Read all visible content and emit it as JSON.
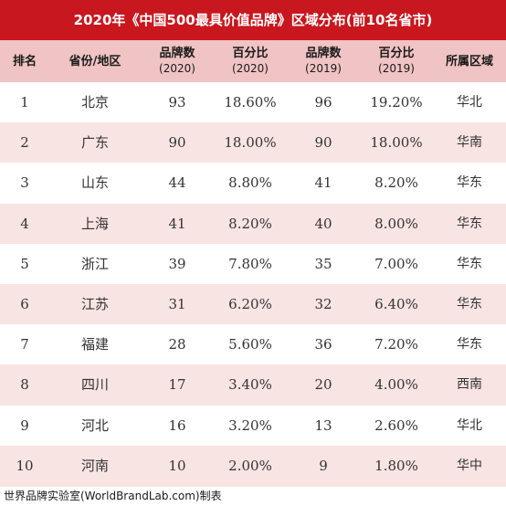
{
  "title": "2020年《中国500最具价值品牌》区域分布(前10名省市)",
  "headers": [
    {
      "line1": "排名",
      "line2": ""
    },
    {
      "line1": "省份/地区",
      "line2": ""
    },
    {
      "line1": "品牌数",
      "line2": "(2020)"
    },
    {
      "line1": "百分比",
      "line2": "(2020)"
    },
    {
      "line1": "品牌数",
      "line2": "(2019)"
    },
    {
      "line1": "百分比",
      "line2": "(2019)"
    },
    {
      "line1": "所属区域",
      "line2": ""
    }
  ],
  "chart_data": {
    "type": "table",
    "rows": [
      {
        "rank": "1",
        "province": "北京",
        "brands_2020": "93",
        "pct_2020": "18.60%",
        "brands_2019": "96",
        "pct_2019": "19.20%",
        "region": "华北"
      },
      {
        "rank": "2",
        "province": "广东",
        "brands_2020": "90",
        "pct_2020": "18.00%",
        "brands_2019": "90",
        "pct_2019": "18.00%",
        "region": "华南"
      },
      {
        "rank": "3",
        "province": "山东",
        "brands_2020": "44",
        "pct_2020": "8.80%",
        "brands_2019": "41",
        "pct_2019": "8.20%",
        "region": "华东"
      },
      {
        "rank": "4",
        "province": "上海",
        "brands_2020": "41",
        "pct_2020": "8.20%",
        "brands_2019": "40",
        "pct_2019": "8.00%",
        "region": "华东"
      },
      {
        "rank": "5",
        "province": "浙江",
        "brands_2020": "39",
        "pct_2020": "7.80%",
        "brands_2019": "35",
        "pct_2019": "7.00%",
        "region": "华东"
      },
      {
        "rank": "6",
        "province": "江苏",
        "brands_2020": "31",
        "pct_2020": "6.20%",
        "brands_2019": "32",
        "pct_2019": "6.40%",
        "region": "华东"
      },
      {
        "rank": "7",
        "province": "福建",
        "brands_2020": "28",
        "pct_2020": "5.60%",
        "brands_2019": "36",
        "pct_2019": "7.20%",
        "region": "华东"
      },
      {
        "rank": "8",
        "province": "四川",
        "brands_2020": "17",
        "pct_2020": "3.40%",
        "brands_2019": "20",
        "pct_2019": "4.00%",
        "region": "西南"
      },
      {
        "rank": "9",
        "province": "河北",
        "brands_2020": "16",
        "pct_2020": "3.20%",
        "brands_2019": "13",
        "pct_2019": "2.60%",
        "region": "华北"
      },
      {
        "rank": "10",
        "province": "河南",
        "brands_2020": "10",
        "pct_2020": "2.00%",
        "brands_2019": "9",
        "pct_2019": "1.80%",
        "region": "华中"
      }
    ]
  },
  "footer": "世界品牌实验室(WorldBrandLab.com)制表",
  "colors": {
    "title_bg": "#c8171e",
    "header_bg": "#f0c3c4",
    "alt_row_bg": "#f8e4e3"
  }
}
